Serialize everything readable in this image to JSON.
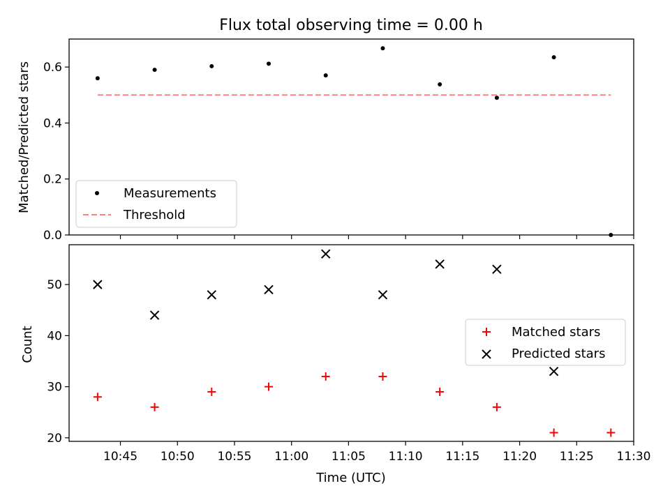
{
  "chart_data": [
    {
      "type": "scatter",
      "title": "Flux total observing time = 0.00 h",
      "xlabel": "",
      "ylabel": "Matched/Predicted stars",
      "x_unit": "time (UTC, HH:MM)",
      "xlim": [
        "10:40:30",
        "11:30:00"
      ],
      "ylim": [
        0,
        0.7
      ],
      "yticks": [
        0.0,
        0.2,
        0.4,
        0.6
      ],
      "ytick_labels": [
        "0.0",
        "0.2",
        "0.4",
        "0.6"
      ],
      "xtick_labels_visible": false,
      "legend_position": "lower-left",
      "series": [
        {
          "name": "Measurements",
          "kind": "points",
          "marker": "dot",
          "color": "#000000",
          "x": [
            "10:43",
            "10:48",
            "10:53",
            "10:58",
            "11:03",
            "11:08",
            "11:13",
            "11:18",
            "11:23",
            "11:28"
          ],
          "values": [
            0.56,
            0.59,
            0.603,
            0.612,
            0.57,
            0.667,
            0.538,
            0.49,
            0.635,
            0.0
          ]
        },
        {
          "name": "Threshold",
          "kind": "line",
          "style": "dashed",
          "color": "#ff7f7f",
          "x": [
            "10:43",
            "11:28"
          ],
          "values": [
            0.5,
            0.5
          ]
        }
      ]
    },
    {
      "type": "scatter",
      "title": "",
      "xlabel": "Time (UTC)",
      "ylabel": "Count",
      "xlim": [
        "10:40:30",
        "11:30:00"
      ],
      "ylim": [
        19.3,
        57.8
      ],
      "yticks": [
        20,
        30,
        40,
        50
      ],
      "ytick_labels": [
        "20",
        "30",
        "40",
        "50"
      ],
      "xtick_labels": [
        "10:45",
        "10:50",
        "10:55",
        "11:00",
        "11:05",
        "11:10",
        "11:15",
        "11:20",
        "11:25",
        "11:30"
      ],
      "legend_position": "center-right",
      "series": [
        {
          "name": "Matched stars",
          "marker": "plus",
          "color": "#ff0000",
          "x": [
            "10:43",
            "10:48",
            "10:53",
            "10:58",
            "11:03",
            "11:08",
            "11:13",
            "11:18",
            "11:23",
            "11:28"
          ],
          "values": [
            28,
            26,
            29,
            30,
            32,
            32,
            29,
            26,
            21,
            21
          ]
        },
        {
          "name": "Predicted stars",
          "marker": "x",
          "color": "#000000",
          "x": [
            "10:43",
            "10:48",
            "10:53",
            "10:58",
            "11:03",
            "11:08",
            "11:13",
            "11:18",
            "11:23"
          ],
          "values": [
            50,
            44,
            48,
            49,
            56,
            48,
            54,
            53,
            33
          ]
        }
      ]
    }
  ]
}
